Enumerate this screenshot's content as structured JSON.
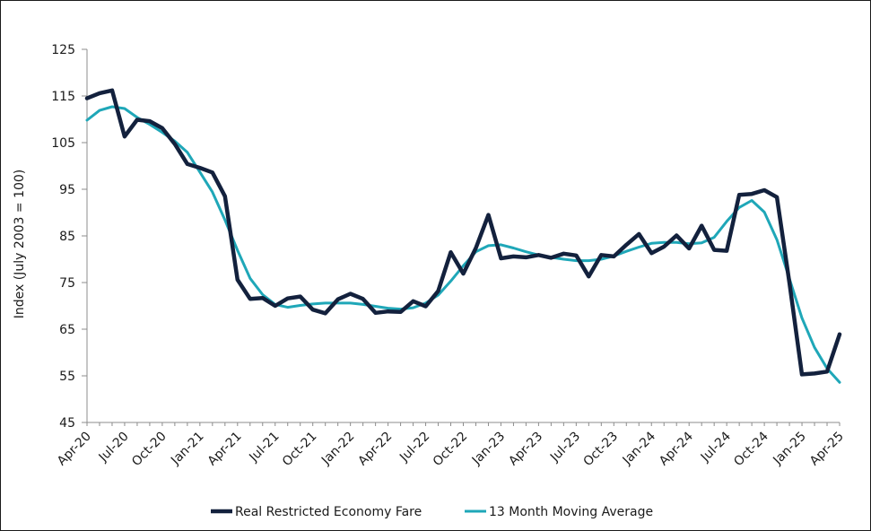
{
  "chart_data": {
    "type": "line",
    "title": "",
    "xlabel": "",
    "ylabel": "Index (July 2003 = 100)",
    "ylim": [
      45,
      125
    ],
    "yticks": [
      45,
      55,
      65,
      75,
      85,
      95,
      105,
      115,
      125
    ],
    "grid": false,
    "legend_position": "bottom",
    "x_tick_labels": [
      "Apr-20",
      "Jul-20",
      "Oct-20",
      "Jan-21",
      "Apr-21",
      "Jul-21",
      "Oct-21",
      "Jan-22",
      "Apr-22",
      "Jul-22",
      "Oct-22",
      "Jan-23",
      "Apr-23",
      "Jul-23",
      "Oct-23",
      "Jan-24",
      "Apr-24",
      "Jul-24",
      "Oct-24",
      "Jan-25",
      "Apr-25"
    ],
    "x": [
      "Apr-20",
      "May-20",
      "Jun-20",
      "Jul-20",
      "Aug-20",
      "Sep-20",
      "Oct-20",
      "Nov-20",
      "Dec-20",
      "Jan-21",
      "Feb-21",
      "Mar-21",
      "Apr-21",
      "May-21",
      "Jun-21",
      "Jul-21",
      "Aug-21",
      "Sep-21",
      "Oct-21",
      "Nov-21",
      "Dec-21",
      "Jan-22",
      "Feb-22",
      "Mar-22",
      "Apr-22",
      "May-22",
      "Jun-22",
      "Jul-22",
      "Aug-22",
      "Sep-22",
      "Oct-22",
      "Nov-22",
      "Dec-22",
      "Jan-23",
      "Feb-23",
      "Mar-23",
      "Apr-23",
      "May-23",
      "Jun-23",
      "Jul-23",
      "Aug-23",
      "Sep-23",
      "Oct-23",
      "Nov-23",
      "Dec-23",
      "Jan-24",
      "Feb-24",
      "Mar-24",
      "Apr-24",
      "May-24",
      "Jun-24",
      "Jul-24",
      "Aug-24",
      "Sep-24",
      "Oct-24",
      "Nov-24",
      "Dec-24",
      "Jan-25",
      "Feb-25",
      "Mar-25",
      "Apr-25"
    ],
    "series": [
      {
        "name": "Real Restricted Economy Fare",
        "color": "#13213d",
        "values": [
          114.5,
          115.6,
          116.2,
          106.3,
          109.9,
          109.6,
          108.1,
          104.7,
          100.4,
          99.6,
          98.6,
          93.5,
          75.6,
          71.5,
          71.7,
          70.0,
          71.6,
          72.0,
          69.2,
          68.4,
          71.4,
          72.6,
          71.5,
          68.5,
          68.8,
          68.7,
          71.0,
          69.9,
          73.2,
          81.5,
          76.9,
          82.4,
          89.5,
          80.2,
          80.6,
          80.4,
          80.9,
          80.3,
          81.2,
          80.8,
          76.3,
          80.9,
          80.6,
          83.1,
          85.4,
          81.3,
          82.7,
          85.1,
          82.3,
          87.2,
          82.0,
          81.8,
          93.8,
          94.0,
          94.8,
          93.3,
          74.9,
          55.3,
          55.5,
          55.9,
          63.9
        ]
      },
      {
        "name": "13 Month Moving Average",
        "color": "#1fa7b8",
        "values": [
          109.8,
          111.9,
          112.7,
          112.3,
          110.4,
          108.9,
          107.2,
          105.3,
          102.9,
          98.7,
          94.4,
          88.4,
          81.9,
          75.9,
          72.4,
          70.3,
          69.7,
          70.1,
          70.4,
          70.6,
          70.6,
          70.6,
          70.3,
          69.9,
          69.5,
          69.3,
          69.6,
          70.6,
          72.3,
          75.3,
          78.6,
          81.6,
          82.9,
          83.1,
          82.4,
          81.6,
          80.9,
          80.4,
          80.0,
          79.7,
          79.7,
          80.0,
          80.7,
          81.7,
          82.6,
          83.4,
          83.6,
          83.6,
          83.3,
          83.5,
          84.7,
          88.1,
          91.1,
          92.6,
          90.1,
          84.2,
          75.8,
          67.4,
          61.1,
          56.6,
          53.6
        ]
      }
    ]
  }
}
